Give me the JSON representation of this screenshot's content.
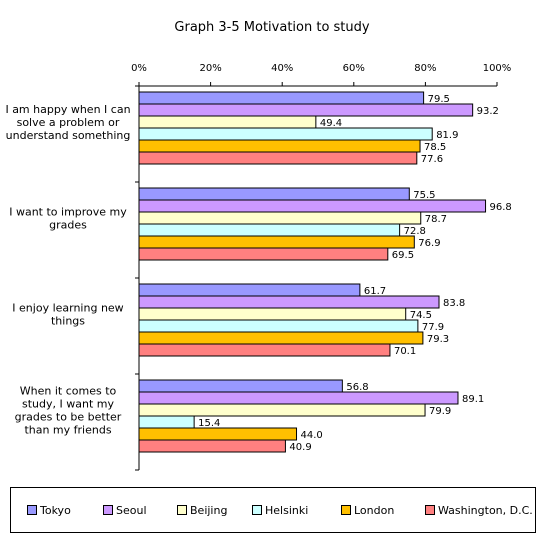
{
  "chart_data": {
    "type": "bar",
    "orientation": "horizontal",
    "title": "Graph 3-5  Motivation to study",
    "xlim": [
      0,
      100
    ],
    "x_ticks": [
      "0%",
      "20%",
      "40%",
      "60%",
      "80%",
      "100%"
    ],
    "categories": [
      "I am happy when I can solve a problem or understand something",
      "I want to improve my grades",
      "I enjoy learning new things",
      "When it comes to study, I want my grades to be better than my friends"
    ],
    "category_lines": [
      [
        "I am happy when I can",
        "solve a problem or",
        "understand something"
      ],
      [
        "I want to improve my",
        "grades"
      ],
      [
        "I enjoy learning new",
        "things"
      ],
      [
        "When it comes to",
        "study, I want my",
        "grades to be better",
        "than my friends"
      ]
    ],
    "series": [
      {
        "name": "Tokyo",
        "color": "#9999ff",
        "values": [
          79.5,
          75.5,
          61.7,
          56.8
        ]
      },
      {
        "name": "Seoul",
        "color": "#cc99ff",
        "values": [
          93.2,
          96.8,
          83.8,
          89.1
        ]
      },
      {
        "name": "Beijing",
        "color": "#ffffcc",
        "values": [
          49.4,
          78.7,
          74.5,
          79.9
        ]
      },
      {
        "name": "Helsinki",
        "color": "#ccffff",
        "values": [
          81.9,
          72.8,
          77.9,
          15.4
        ]
      },
      {
        "name": "London",
        "color": "#ffc000",
        "values": [
          78.5,
          76.9,
          79.3,
          44.0
        ]
      },
      {
        "name": "Washington, D.C.",
        "color": "#ff8080",
        "values": [
          77.6,
          69.5,
          70.1,
          40.9
        ]
      }
    ],
    "grid": false,
    "legend_position": "bottom"
  }
}
